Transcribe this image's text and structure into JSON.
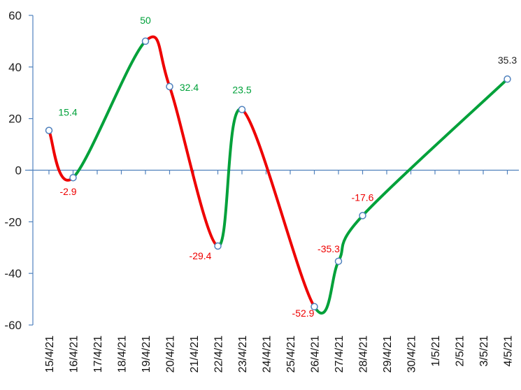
{
  "chart_data": {
    "type": "line",
    "title": "",
    "xlabel": "",
    "ylabel": "",
    "categories": [
      "15/4/21",
      "16/4/21",
      "17/4/21",
      "18/4/21",
      "19/4/21",
      "20/4/21",
      "21/4/21",
      "22/4/21",
      "23/4/21",
      "24/4/21",
      "25/4/21",
      "26/4/21",
      "27/4/21",
      "28/4/21",
      "29/4/21",
      "30/4/21",
      "1/5/21",
      "2/5/21",
      "3/5/21",
      "4/5/21"
    ],
    "ylim": [
      -60,
      60
    ],
    "yticks": [
      "60",
      "40",
      "20",
      "0",
      "-20",
      "-40",
      "-60"
    ],
    "grid": false,
    "legend": "none",
    "colors": {
      "up": "#00a13a",
      "down": "#ee0000",
      "axis": "#4f81bd",
      "marker_fill": "#ffffff",
      "marker_stroke": "#4f81bd",
      "label_neutral": "#222222"
    },
    "points": [
      {
        "date": "15/4/21",
        "value": 15.4,
        "label": "15.4",
        "label_color": "#00a13a"
      },
      {
        "date": "16/4/21",
        "value": -2.9,
        "label": "-2.9",
        "label_color": "#ee0000"
      },
      {
        "date": "19/4/21",
        "value": 50,
        "label": "50",
        "label_color": "#00a13a"
      },
      {
        "date": "20/4/21",
        "value": 32.4,
        "label": "32.4",
        "label_color": "#00a13a"
      },
      {
        "date": "22/4/21",
        "value": -29.4,
        "label": "-29.4",
        "label_color": "#ee0000"
      },
      {
        "date": "23/4/21",
        "value": 23.5,
        "label": "23.5",
        "label_color": "#00a13a"
      },
      {
        "date": "26/4/21",
        "value": -52.9,
        "label": "-52.9",
        "label_color": "#ee0000"
      },
      {
        "date": "27/4/21",
        "value": -35.3,
        "label": "-35.3",
        "label_color": "#ee0000"
      },
      {
        "date": "28/4/21",
        "value": -17.6,
        "label": "-17.6",
        "label_color": "#ee0000"
      },
      {
        "date": "4/5/21",
        "value": 35.3,
        "label": "35.3",
        "label_color": "#222222"
      }
    ]
  }
}
